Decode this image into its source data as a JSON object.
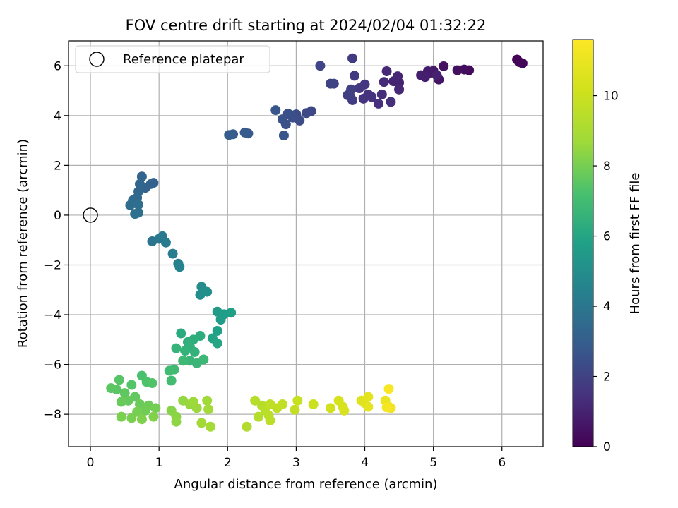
{
  "chart_data": {
    "type": "scatter",
    "title": "FOV centre drift starting at 2024/02/04 01:32:22",
    "xlabel": "Angular distance from reference (arcmin)",
    "ylabel": "Rotation from reference (arcmin)",
    "xlim": [
      -0.32,
      6.6
    ],
    "ylim": [
      -9.3,
      7.0
    ],
    "xticks": [
      0,
      1,
      2,
      3,
      4,
      5,
      6
    ],
    "yticks": [
      -8,
      -6,
      -4,
      -2,
      0,
      2,
      4,
      6
    ],
    "xtick_labels": [
      "0",
      "1",
      "2",
      "3",
      "4",
      "5",
      "6"
    ],
    "ytick_labels": [
      "−8",
      "−6",
      "−4",
      "−2",
      "0",
      "2",
      "4",
      "6"
    ],
    "grid": true,
    "legend": {
      "placement": "top-left",
      "label": "Reference platepar",
      "marker": "open-circle"
    },
    "reference_point": {
      "x": 0,
      "y": 0
    },
    "colorbar": {
      "label": "Hours from first FF file",
      "colormap": "viridis",
      "range": [
        0,
        11.6
      ],
      "ticks": [
        0,
        2,
        4,
        6,
        8,
        10
      ],
      "tick_labels": [
        "0",
        "2",
        "4",
        "6",
        "8",
        "10"
      ]
    },
    "points": [
      {
        "x": 6.22,
        "y": 6.25,
        "c": 0.05
      },
      {
        "x": 6.25,
        "y": 6.15,
        "c": 0.1
      },
      {
        "x": 6.3,
        "y": 6.1,
        "c": 0.15
      },
      {
        "x": 5.52,
        "y": 5.82,
        "c": 0.3
      },
      {
        "x": 5.45,
        "y": 5.85,
        "c": 0.35
      },
      {
        "x": 5.35,
        "y": 5.82,
        "c": 0.4
      },
      {
        "x": 5.15,
        "y": 5.98,
        "c": 0.5
      },
      {
        "x": 5.08,
        "y": 5.45,
        "c": 0.6
      },
      {
        "x": 5.0,
        "y": 5.8,
        "c": 0.7
      },
      {
        "x": 4.95,
        "y": 5.72,
        "c": 0.75
      },
      {
        "x": 4.92,
        "y": 5.78,
        "c": 0.8
      },
      {
        "x": 4.88,
        "y": 5.55,
        "c": 0.85
      },
      {
        "x": 4.82,
        "y": 5.62,
        "c": 0.9
      },
      {
        "x": 5.05,
        "y": 5.62,
        "c": 0.95
      },
      {
        "x": 4.5,
        "y": 5.32,
        "c": 1.0
      },
      {
        "x": 4.42,
        "y": 5.38,
        "c": 1.05
      },
      {
        "x": 4.48,
        "y": 5.58,
        "c": 1.1
      },
      {
        "x": 4.5,
        "y": 5.05,
        "c": 1.15
      },
      {
        "x": 4.32,
        "y": 5.78,
        "c": 1.2
      },
      {
        "x": 4.28,
        "y": 5.35,
        "c": 1.25
      },
      {
        "x": 4.25,
        "y": 4.85,
        "c": 1.3
      },
      {
        "x": 4.38,
        "y": 4.55,
        "c": 1.35
      },
      {
        "x": 4.2,
        "y": 4.48,
        "c": 1.4
      },
      {
        "x": 4.1,
        "y": 4.75,
        "c": 1.45
      },
      {
        "x": 4.05,
        "y": 4.85,
        "c": 1.5
      },
      {
        "x": 3.98,
        "y": 4.68,
        "c": 1.55
      },
      {
        "x": 4.0,
        "y": 5.25,
        "c": 1.6
      },
      {
        "x": 3.92,
        "y": 5.1,
        "c": 1.65
      },
      {
        "x": 3.85,
        "y": 5.6,
        "c": 1.7
      },
      {
        "x": 3.82,
        "y": 6.3,
        "c": 1.75
      },
      {
        "x": 3.82,
        "y": 4.62,
        "c": 1.8
      },
      {
        "x": 3.78,
        "y": 4.82,
        "c": 1.85
      },
      {
        "x": 3.75,
        "y": 4.82,
        "c": 1.9
      },
      {
        "x": 3.8,
        "y": 5.05,
        "c": 1.95
      },
      {
        "x": 3.55,
        "y": 5.28,
        "c": 2.0
      },
      {
        "x": 3.5,
        "y": 5.28,
        "c": 2.05
      },
      {
        "x": 3.35,
        "y": 6.0,
        "c": 2.1
      },
      {
        "x": 3.22,
        "y": 4.18,
        "c": 2.2
      },
      {
        "x": 3.15,
        "y": 4.1,
        "c": 2.25
      },
      {
        "x": 3.05,
        "y": 3.8,
        "c": 2.3
      },
      {
        "x": 3.0,
        "y": 4.05,
        "c": 2.35
      },
      {
        "x": 2.95,
        "y": 3.92,
        "c": 2.4
      },
      {
        "x": 2.92,
        "y": 4.02,
        "c": 2.45
      },
      {
        "x": 2.88,
        "y": 4.08,
        "c": 2.5
      },
      {
        "x": 2.85,
        "y": 3.65,
        "c": 2.55
      },
      {
        "x": 2.8,
        "y": 3.85,
        "c": 2.6
      },
      {
        "x": 2.82,
        "y": 3.2,
        "c": 2.65
      },
      {
        "x": 2.7,
        "y": 4.22,
        "c": 2.7
      },
      {
        "x": 2.3,
        "y": 3.28,
        "c": 2.8
      },
      {
        "x": 2.25,
        "y": 3.32,
        "c": 2.85
      },
      {
        "x": 2.08,
        "y": 3.25,
        "c": 2.9
      },
      {
        "x": 2.02,
        "y": 3.22,
        "c": 2.95
      },
      {
        "x": 0.92,
        "y": 1.3,
        "c": 3.1
      },
      {
        "x": 0.88,
        "y": 1.25,
        "c": 3.15
      },
      {
        "x": 0.8,
        "y": 1.1,
        "c": 3.2
      },
      {
        "x": 0.75,
        "y": 1.55,
        "c": 3.25
      },
      {
        "x": 0.72,
        "y": 1.25,
        "c": 3.3
      },
      {
        "x": 0.7,
        "y": 0.95,
        "c": 3.35
      },
      {
        "x": 0.68,
        "y": 0.7,
        "c": 3.4
      },
      {
        "x": 0.65,
        "y": 0.55,
        "c": 3.45
      },
      {
        "x": 0.62,
        "y": 0.6,
        "c": 3.5
      },
      {
        "x": 0.6,
        "y": 0.45,
        "c": 3.55
      },
      {
        "x": 0.58,
        "y": 0.4,
        "c": 3.6
      },
      {
        "x": 0.7,
        "y": 0.42,
        "c": 3.65
      },
      {
        "x": 0.7,
        "y": 0.1,
        "c": 3.7
      },
      {
        "x": 0.65,
        "y": 0.05,
        "c": 3.75
      },
      {
        "x": 0.9,
        "y": -1.05,
        "c": 3.9
      },
      {
        "x": 1.0,
        "y": -0.95,
        "c": 4.0
      },
      {
        "x": 1.05,
        "y": -0.85,
        "c": 4.1
      },
      {
        "x": 1.1,
        "y": -1.1,
        "c": 4.2
      },
      {
        "x": 1.2,
        "y": -1.55,
        "c": 4.3
      },
      {
        "x": 1.28,
        "y": -1.95,
        "c": 4.4
      },
      {
        "x": 1.3,
        "y": -2.08,
        "c": 4.5
      },
      {
        "x": 1.62,
        "y": -2.88,
        "c": 4.9
      },
      {
        "x": 1.6,
        "y": -3.2,
        "c": 5.0
      },
      {
        "x": 1.7,
        "y": -3.08,
        "c": 5.05
      },
      {
        "x": 1.85,
        "y": -3.88,
        "c": 5.5
      },
      {
        "x": 1.9,
        "y": -4.2,
        "c": 5.6
      },
      {
        "x": 1.95,
        "y": -3.98,
        "c": 5.65
      },
      {
        "x": 2.05,
        "y": -3.92,
        "c": 5.7
      },
      {
        "x": 1.85,
        "y": -4.65,
        "c": 5.8
      },
      {
        "x": 1.78,
        "y": -4.95,
        "c": 5.9
      },
      {
        "x": 1.85,
        "y": -5.15,
        "c": 6.0
      },
      {
        "x": 1.32,
        "y": -4.75,
        "c": 6.2
      },
      {
        "x": 1.6,
        "y": -4.85,
        "c": 6.3
      },
      {
        "x": 1.5,
        "y": -5.0,
        "c": 6.35
      },
      {
        "x": 1.42,
        "y": -5.1,
        "c": 6.4
      },
      {
        "x": 1.45,
        "y": -5.28,
        "c": 6.45
      },
      {
        "x": 1.52,
        "y": -5.5,
        "c": 6.5
      },
      {
        "x": 1.38,
        "y": -5.45,
        "c": 6.55
      },
      {
        "x": 1.25,
        "y": -5.35,
        "c": 6.6
      },
      {
        "x": 1.45,
        "y": -5.85,
        "c": 6.7
      },
      {
        "x": 1.55,
        "y": -5.95,
        "c": 6.75
      },
      {
        "x": 1.65,
        "y": -5.8,
        "c": 6.8
      },
      {
        "x": 1.35,
        "y": -5.85,
        "c": 6.85
      },
      {
        "x": 1.22,
        "y": -6.2,
        "c": 6.9
      },
      {
        "x": 1.15,
        "y": -6.25,
        "c": 6.95
      },
      {
        "x": 1.18,
        "y": -6.65,
        "c": 7.0
      },
      {
        "x": 0.75,
        "y": -6.45,
        "c": 7.2
      },
      {
        "x": 0.82,
        "y": -6.7,
        "c": 7.3
      },
      {
        "x": 0.9,
        "y": -6.75,
        "c": 7.35
      },
      {
        "x": 0.6,
        "y": -6.82,
        "c": 7.4
      },
      {
        "x": 0.42,
        "y": -6.62,
        "c": 7.45
      },
      {
        "x": 0.38,
        "y": -7.0,
        "c": 7.5
      },
      {
        "x": 0.3,
        "y": -6.95,
        "c": 7.55
      },
      {
        "x": 0.5,
        "y": -7.15,
        "c": 7.6
      },
      {
        "x": 0.65,
        "y": -7.3,
        "c": 7.65
      },
      {
        "x": 0.55,
        "y": -7.45,
        "c": 7.7
      },
      {
        "x": 0.45,
        "y": -7.5,
        "c": 7.75
      },
      {
        "x": 0.72,
        "y": -7.6,
        "c": 7.8
      },
      {
        "x": 0.85,
        "y": -7.65,
        "c": 7.85
      },
      {
        "x": 0.8,
        "y": -7.85,
        "c": 7.9
      },
      {
        "x": 0.95,
        "y": -7.75,
        "c": 7.95
      },
      {
        "x": 0.68,
        "y": -7.9,
        "c": 8.0
      },
      {
        "x": 0.6,
        "y": -8.15,
        "c": 8.05
      },
      {
        "x": 0.45,
        "y": -8.1,
        "c": 8.1
      },
      {
        "x": 0.75,
        "y": -8.2,
        "c": 8.15
      },
      {
        "x": 0.92,
        "y": -8.1,
        "c": 8.2
      },
      {
        "x": 1.18,
        "y": -7.85,
        "c": 8.3
      },
      {
        "x": 1.25,
        "y": -8.1,
        "c": 8.35
      },
      {
        "x": 1.25,
        "y": -8.3,
        "c": 8.4
      },
      {
        "x": 1.35,
        "y": -7.45,
        "c": 8.5
      },
      {
        "x": 1.45,
        "y": -7.6,
        "c": 8.55
      },
      {
        "x": 1.55,
        "y": -7.75,
        "c": 8.6
      },
      {
        "x": 1.5,
        "y": -7.5,
        "c": 8.65
      },
      {
        "x": 1.7,
        "y": -7.45,
        "c": 8.7
      },
      {
        "x": 1.72,
        "y": -7.8,
        "c": 8.75
      },
      {
        "x": 1.62,
        "y": -8.35,
        "c": 8.8
      },
      {
        "x": 1.75,
        "y": -8.5,
        "c": 8.85
      },
      {
        "x": 2.28,
        "y": -8.5,
        "c": 9.2
      },
      {
        "x": 2.45,
        "y": -8.1,
        "c": 9.3
      },
      {
        "x": 2.4,
        "y": -7.45,
        "c": 9.35
      },
      {
        "x": 2.5,
        "y": -7.65,
        "c": 9.4
      },
      {
        "x": 2.55,
        "y": -7.85,
        "c": 9.45
      },
      {
        "x": 2.6,
        "y": -8.05,
        "c": 9.5
      },
      {
        "x": 2.62,
        "y": -8.25,
        "c": 9.55
      },
      {
        "x": 2.62,
        "y": -7.6,
        "c": 9.6
      },
      {
        "x": 2.72,
        "y": -7.75,
        "c": 9.65
      },
      {
        "x": 2.8,
        "y": -7.6,
        "c": 9.7
      },
      {
        "x": 2.98,
        "y": -7.82,
        "c": 9.8
      },
      {
        "x": 3.02,
        "y": -7.45,
        "c": 9.85
      },
      {
        "x": 3.25,
        "y": -7.6,
        "c": 10.0
      },
      {
        "x": 3.5,
        "y": -7.75,
        "c": 10.2
      },
      {
        "x": 3.62,
        "y": -7.45,
        "c": 10.3
      },
      {
        "x": 3.68,
        "y": -7.7,
        "c": 10.35
      },
      {
        "x": 3.7,
        "y": -7.85,
        "c": 10.4
      },
      {
        "x": 3.95,
        "y": -7.45,
        "c": 10.6
      },
      {
        "x": 4.0,
        "y": -7.55,
        "c": 10.7
      },
      {
        "x": 4.05,
        "y": -7.3,
        "c": 10.75
      },
      {
        "x": 4.05,
        "y": -7.7,
        "c": 10.8
      },
      {
        "x": 4.3,
        "y": -7.45,
        "c": 11.0
      },
      {
        "x": 4.35,
        "y": -7.7,
        "c": 11.1
      },
      {
        "x": 4.38,
        "y": -7.75,
        "c": 11.2
      },
      {
        "x": 4.32,
        "y": -7.72,
        "c": 11.3
      },
      {
        "x": 4.35,
        "y": -6.98,
        "c": 11.5
      }
    ]
  }
}
